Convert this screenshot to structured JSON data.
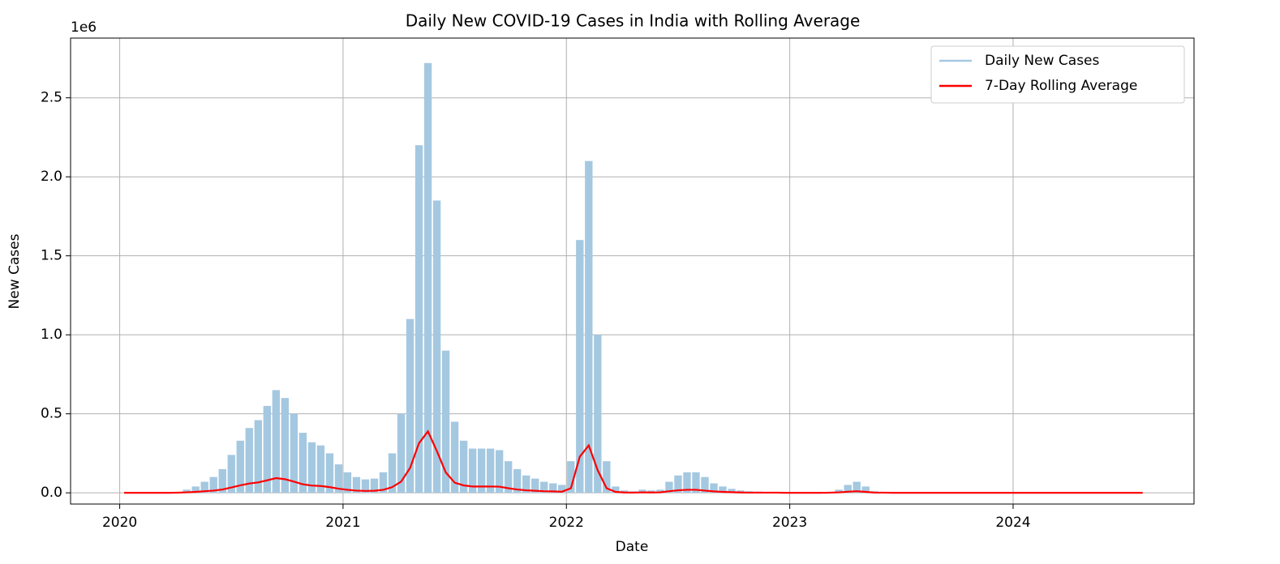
{
  "chart_data": {
    "type": "bar_line",
    "title": "Daily New COVID-19 Cases in India with Rolling Average",
    "xlabel": "Date",
    "ylabel": "New Cases",
    "y_offset_label": "1e6",
    "x": [
      2020.02,
      2020.06,
      2020.1,
      2020.14,
      2020.18,
      2020.22,
      2020.26,
      2020.3,
      2020.34,
      2020.38,
      2020.42,
      2020.46,
      2020.5,
      2020.54,
      2020.58,
      2020.62,
      2020.66,
      2020.7,
      2020.74,
      2020.78,
      2020.82,
      2020.86,
      2020.9,
      2020.94,
      2020.98,
      2021.02,
      2021.06,
      2021.1,
      2021.14,
      2021.18,
      2021.22,
      2021.26,
      2021.3,
      2021.34,
      2021.38,
      2021.42,
      2021.46,
      2021.5,
      2021.54,
      2021.58,
      2021.62,
      2021.66,
      2021.7,
      2021.74,
      2021.78,
      2021.82,
      2021.86,
      2021.9,
      2021.94,
      2021.98,
      2022.02,
      2022.06,
      2022.1,
      2022.14,
      2022.18,
      2022.22,
      2022.26,
      2022.3,
      2022.34,
      2022.38,
      2022.42,
      2022.46,
      2022.5,
      2022.54,
      2022.58,
      2022.62,
      2022.66,
      2022.7,
      2022.74,
      2022.78,
      2022.82,
      2022.86,
      2022.9,
      2022.94,
      2022.98,
      2023.02,
      2023.06,
      2023.1,
      2023.14,
      2023.18,
      2023.22,
      2023.26,
      2023.3,
      2023.34,
      2023.38,
      2023.42,
      2023.46,
      2023.5,
      2023.54,
      2023.58,
      2023.62,
      2023.66,
      2023.7,
      2023.74,
      2023.78,
      2023.82,
      2023.86,
      2023.9,
      2023.94,
      2023.98,
      2024.02,
      2024.06,
      2024.1,
      2024.14,
      2024.18,
      2024.22,
      2024.26,
      2024.3,
      2024.34,
      2024.38,
      2024.42,
      2024.46,
      2024.5,
      2024.54,
      2024.58
    ],
    "series": [
      {
        "name": "Daily New Cases",
        "color": "#a5c8e1",
        "kind": "bar",
        "values": [
          0,
          0,
          0,
          0,
          0,
          0,
          0.005,
          0.02,
          0.04,
          0.07,
          0.1,
          0.15,
          0.24,
          0.33,
          0.41,
          0.46,
          0.55,
          0.65,
          0.6,
          0.5,
          0.38,
          0.32,
          0.3,
          0.25,
          0.18,
          0.13,
          0.1,
          0.085,
          0.09,
          0.13,
          0.25,
          0.5,
          1.1,
          2.2,
          2.72,
          1.85,
          0.9,
          0.45,
          0.33,
          0.28,
          0.28,
          0.28,
          0.27,
          0.2,
          0.15,
          0.11,
          0.09,
          0.07,
          0.06,
          0.05,
          0.2,
          1.6,
          2.1,
          1.0,
          0.2,
          0.04,
          0.015,
          0.01,
          0.02,
          0.015,
          0.02,
          0.07,
          0.11,
          0.13,
          0.13,
          0.1,
          0.06,
          0.04,
          0.025,
          0.015,
          0.01,
          0.008,
          0.005,
          0.004,
          0.003,
          0.002,
          0.002,
          0.002,
          0.003,
          0.005,
          0.02,
          0.05,
          0.07,
          0.04,
          0.01,
          0.004,
          0.002,
          0.001,
          0.001,
          0.001,
          0,
          0,
          0,
          0,
          0,
          0,
          0,
          0,
          0,
          0,
          0,
          0,
          0,
          0,
          0,
          0,
          0,
          0,
          0,
          0,
          0,
          0,
          0,
          0,
          0
        ]
      },
      {
        "name": "7-Day Rolling Average",
        "color": "#ff0000",
        "kind": "line",
        "values": [
          0,
          0,
          0,
          0,
          0,
          0,
          0.001,
          0.003,
          0.006,
          0.01,
          0.014,
          0.021,
          0.034,
          0.047,
          0.059,
          0.066,
          0.079,
          0.093,
          0.086,
          0.071,
          0.054,
          0.046,
          0.043,
          0.036,
          0.026,
          0.019,
          0.014,
          0.012,
          0.013,
          0.019,
          0.036,
          0.071,
          0.157,
          0.314,
          0.389,
          0.264,
          0.129,
          0.064,
          0.047,
          0.04,
          0.04,
          0.04,
          0.039,
          0.029,
          0.021,
          0.016,
          0.013,
          0.01,
          0.009,
          0.007,
          0.029,
          0.229,
          0.3,
          0.143,
          0.029,
          0.006,
          0.002,
          0.001,
          0.003,
          0.002,
          0.003,
          0.01,
          0.016,
          0.019,
          0.019,
          0.014,
          0.009,
          0.006,
          0.004,
          0.002,
          0.001,
          0.001,
          0.001,
          0.001,
          0,
          0,
          0,
          0,
          0,
          0.001,
          0.003,
          0.007,
          0.01,
          0.006,
          0.001,
          0.001,
          0,
          0,
          0,
          0,
          0,
          0,
          0,
          0,
          0,
          0,
          0,
          0,
          0,
          0,
          0,
          0,
          0,
          0,
          0,
          0,
          0,
          0,
          0,
          0,
          0,
          0,
          0,
          0,
          0
        ]
      }
    ],
    "xlim": [
      2019.78,
      2024.81
    ],
    "xticks": [
      2020,
      2021,
      2022,
      2023,
      2024
    ],
    "ylim": [
      -0.071,
      2.878
    ],
    "yticks": [
      {
        "value": 0,
        "label": "0.0"
      },
      0.5,
      {
        "value": 1,
        "label": "1.0"
      },
      1.5,
      {
        "value": 2,
        "label": "2.0"
      },
      2.5
    ],
    "grid": true,
    "legend": "upper right"
  }
}
